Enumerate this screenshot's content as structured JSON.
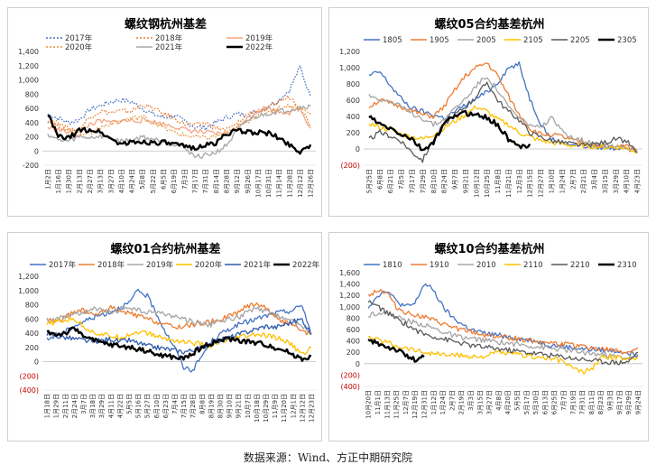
{
  "footer": {
    "source": "数据来源：Wind、方正中期研究院"
  },
  "colors": {
    "blue": "#4472c4",
    "orange": "#ed7d31",
    "gray": "#a5a5a5",
    "gold": "#ffc000",
    "black": "#000000",
    "negative_tick": "#c00000"
  },
  "chart_data": [
    {
      "type": "line",
      "title": "螺纹钢杭州基差",
      "ylim": [
        -200,
        1400
      ],
      "yticks": [
        "1,400",
        "1,200",
        "1,000",
        "800",
        "600",
        "400",
        "200",
        "0",
        "-200"
      ],
      "x_ticks": [
        "1月2日",
        "1月16日",
        "1月30日",
        "2月13日",
        "2月27日",
        "3月13日",
        "3月27日",
        "4月10日",
        "4月24日",
        "5月8日",
        "5月22日",
        "6月5日",
        "6月19日",
        "7月3日",
        "7月17日",
        "7月31日",
        "8月14日",
        "8月28日",
        "9月12日",
        "9月26日",
        "10月17日",
        "10月31日",
        "11月14日",
        "11月28日",
        "12月12日",
        "12月26日"
      ],
      "legend_position": "top",
      "series": [
        {
          "name": "2017年",
          "color": "#4472c4",
          "style": "dotted",
          "width": 1.3,
          "values": [
            520,
            460,
            400,
            440,
            580,
            640,
            690,
            720,
            690,
            600,
            520,
            470,
            500,
            420,
            340,
            330,
            400,
            470,
            520,
            510,
            560,
            630,
            720,
            860,
            1180,
            760
          ]
        },
        {
          "name": "2018年",
          "color": "#ed7d31",
          "style": "dotted",
          "width": 1.3,
          "values": [
            430,
            350,
            320,
            300,
            480,
            560,
            540,
            560,
            560,
            650,
            600,
            520,
            470,
            380,
            360,
            400,
            320,
            300,
            380,
            520,
            580,
            600,
            700,
            760,
            630,
            360
          ]
        },
        {
          "name": "2019年",
          "color": "#f4a582",
          "style": "solid",
          "width": 1.3,
          "values": [
            330,
            300,
            260,
            220,
            380,
            420,
            400,
            420,
            430,
            430,
            410,
            380,
            350,
            300,
            280,
            260,
            240,
            250,
            330,
            460,
            570,
            600,
            560,
            540,
            600,
            320
          ]
        },
        {
          "name": "2020年",
          "color": "#e69138",
          "style": "dotted",
          "width": 1.3,
          "values": [
            450,
            380,
            300,
            260,
            250,
            330,
            390,
            430,
            460,
            480,
            420,
            330,
            260,
            220,
            200,
            180,
            210,
            250,
            320,
            420,
            520,
            560,
            600,
            640,
            600,
            520
          ]
        },
        {
          "name": "2021年",
          "color": "#a5a5a5",
          "style": "solid",
          "width": 1.3,
          "values": [
            240,
            150,
            140,
            200,
            190,
            210,
            180,
            140,
            150,
            200,
            170,
            140,
            90,
            60,
            -80,
            -60,
            -20,
            80,
            280,
            430,
            490,
            530,
            560,
            580,
            620,
            630
          ]
        },
        {
          "name": "2022年",
          "color": "#000000",
          "style": "solid",
          "width": 2.4,
          "values": [
            520,
            200,
            180,
            290,
            300,
            270,
            170,
            100,
            120,
            130,
            120,
            120,
            90,
            60,
            50,
            80,
            110,
            250,
            280,
            270,
            260,
            250,
            180,
            90,
            -10,
            90
          ]
        }
      ]
    },
    {
      "type": "line",
      "title": "螺纹05合约基差杭州",
      "ylim": [
        -200,
        1200
      ],
      "yticks": [
        "1,200",
        "1,000",
        "800",
        "600",
        "400",
        "200",
        "0",
        "(200)"
      ],
      "x_ticks": [
        "5月25日",
        "6月8日",
        "6月21日",
        "7月5日",
        "7月17日",
        "7月29日",
        "8月10日",
        "8月24日",
        "9月7日",
        "9月21日",
        "10月12日",
        "10月25日",
        "11月8日",
        "11月21日",
        "12月3日",
        "12月15日",
        "12月27日",
        "1月10日",
        "1月24日",
        "2月7日",
        "2月21日",
        "3月4日",
        "3月15日",
        "3月29日",
        "4月10日",
        "4月23日"
      ],
      "legend_position": "top",
      "series": [
        {
          "name": "1805",
          "color": "#4472c4",
          "style": "solid",
          "width": 1.3,
          "values": [
            900,
            950,
            780,
            620,
            500,
            460,
            420,
            380,
            460,
            540,
            620,
            700,
            820,
            1000,
            1040,
            620,
            320,
            120,
            80,
            60,
            40,
            20,
            20,
            10,
            20,
            -40
          ]
        },
        {
          "name": "1905",
          "color": "#ed7d31",
          "style": "solid",
          "width": 1.3,
          "values": [
            520,
            600,
            560,
            520,
            470,
            420,
            400,
            520,
            720,
            900,
            1000,
            1060,
            900,
            650,
            420,
            250,
            180,
            180,
            150,
            100,
            80,
            60,
            40,
            20,
            40,
            -30
          ]
        },
        {
          "name": "2005",
          "color": "#a5a5a5",
          "style": "solid",
          "width": 1.3,
          "values": [
            660,
            620,
            580,
            520,
            440,
            380,
            300,
            360,
            500,
            620,
            780,
            900,
            720,
            520,
            380,
            300,
            250,
            380,
            220,
            150,
            100,
            80,
            60,
            40,
            20,
            -20
          ]
        },
        {
          "name": "2105",
          "color": "#ffc000",
          "style": "solid",
          "width": 1.3,
          "values": [
            320,
            260,
            240,
            180,
            150,
            120,
            180,
            260,
            340,
            420,
            520,
            460,
            360,
            300,
            200,
            150,
            100,
            80,
            60,
            40,
            40,
            30,
            20,
            20,
            10,
            -40
          ]
        },
        {
          "name": "2205",
          "color": "#595959",
          "style": "solid",
          "width": 1.3,
          "values": [
            120,
            200,
            160,
            100,
            -40,
            -140,
            120,
            300,
            420,
            520,
            640,
            820,
            600,
            460,
            360,
            200,
            150,
            100,
            80,
            60,
            40,
            60,
            80,
            120,
            100,
            -50
          ]
        },
        {
          "name": "2305",
          "color": "#000000",
          "style": "solid",
          "width": 2.4,
          "values": [
            400,
            300,
            250,
            180,
            120,
            -20,
            80,
            300,
            420,
            440,
            430,
            380,
            300,
            120,
            20,
            60
          ]
        }
      ]
    },
    {
      "type": "line",
      "title": "螺纹01合约杭州基差",
      "ylim": [
        -400,
        1200
      ],
      "yticks": [
        "1,200",
        "1,000",
        "800",
        "600",
        "400",
        "200",
        "0",
        "(200)",
        "(400)"
      ],
      "x_ticks": [
        "1月18日",
        "1月29日",
        "2月11日",
        "2月24日",
        "3月7日",
        "3月18日",
        "3月29日",
        "4月11日",
        "4月22日",
        "5月5日",
        "5月16日",
        "5月27日",
        "6月10日",
        "6月23日",
        "7月4日",
        "7月15日",
        "7月28日",
        "8月8日",
        "8月19日",
        "8月30日",
        "9月10日",
        "9月21日",
        "10月7日",
        "10月18日",
        "10月29日",
        "11月9日",
        "11月20日",
        "12月1日",
        "12月12日",
        "12月23日"
      ],
      "legend_position": "top",
      "series": [
        {
          "name": "2017年",
          "color": "#4472c4",
          "style": "solid",
          "width": 1.3,
          "values": [
            300,
            380,
            420,
            500,
            560,
            620,
            660,
            700,
            760,
            820,
            1000,
            920,
            680,
            420,
            200,
            -80,
            -120,
            80,
            280,
            380,
            460,
            520,
            560,
            600,
            640,
            680,
            700,
            720,
            800,
            380
          ]
        },
        {
          "name": "2018年",
          "color": "#ed7d31",
          "style": "solid",
          "width": 1.3,
          "values": [
            600,
            560,
            620,
            700,
            720,
            650,
            700,
            760,
            700,
            680,
            640,
            600,
            560,
            520,
            480,
            500,
            520,
            540,
            560,
            600,
            640,
            700,
            780,
            820,
            760,
            640,
            560,
            500,
            420,
            380
          ]
        },
        {
          "name": "2019年",
          "color": "#a5a5a5",
          "style": "solid",
          "width": 1.3,
          "values": [
            580,
            600,
            640,
            660,
            700,
            740,
            720,
            680,
            740,
            760,
            720,
            680,
            700,
            660,
            640,
            600,
            560,
            540,
            520,
            560,
            600,
            620,
            700,
            740,
            700,
            660,
            620,
            560,
            500,
            420
          ]
        },
        {
          "name": "2020年",
          "color": "#ffc000",
          "style": "solid",
          "width": 1.3,
          "values": [
            520,
            560,
            580,
            600,
            500,
            420,
            380,
            360,
            340,
            380,
            420,
            400,
            360,
            320,
            300,
            280,
            260,
            240,
            220,
            260,
            300,
            340,
            360,
            380,
            360,
            340,
            300,
            220,
            100,
            200
          ]
        },
        {
          "name": "2021年",
          "color": "#2e5aac",
          "style": "solid",
          "width": 1.3,
          "values": [
            400,
            360,
            340,
            320,
            300,
            280,
            300,
            320,
            280,
            300,
            260,
            220,
            200,
            180,
            160,
            140,
            160,
            200,
            260,
            300,
            340,
            380,
            420,
            460,
            500,
            480,
            520,
            560,
            600,
            380
          ]
        },
        {
          "name": "2022年",
          "color": "#000000",
          "style": "solid",
          "width": 2.4,
          "values": [
            420,
            380,
            400,
            460,
            380,
            300,
            260,
            240,
            220,
            200,
            180,
            150,
            100,
            80,
            60,
            40,
            120,
            200,
            260,
            300,
            320,
            300,
            280,
            260,
            240,
            200,
            160,
            100,
            40,
            80
          ]
        }
      ]
    },
    {
      "type": "line",
      "title": "螺纹10合约基差杭州",
      "ylim": [
        -400,
        1600
      ],
      "yticks": [
        "1,600",
        "1,400",
        "1,200",
        "1,000",
        "800",
        "600",
        "400",
        "200",
        "0",
        "(200)",
        "(400)"
      ],
      "x_ticks": [
        "10月20日",
        "11月1日",
        "11月13日",
        "11月25日",
        "12月7日",
        "12月19日",
        "12月31日",
        "1月12日",
        "1月24日",
        "2月7日",
        "2月19日",
        "3月3日",
        "3月15日",
        "3月27日",
        "4月8日",
        "4月20日",
        "5月5日",
        "5月17日",
        "5月30日",
        "6月13日",
        "6月25日",
        "7月7日",
        "7月19日",
        "7月31日",
        "8月11日",
        "8月23日",
        "9月3日",
        "9月17日",
        "9月29日",
        "9月24日"
      ],
      "legend_position": "top",
      "series": [
        {
          "name": "1810",
          "color": "#4472c4",
          "style": "solid",
          "width": 1.3,
          "values": [
            1000,
            1200,
            1300,
            1100,
            1000,
            1050,
            1400,
            1300,
            1000,
            820,
            700,
            600,
            550,
            520,
            500,
            480,
            450,
            420,
            400,
            350,
            320,
            300,
            280,
            260,
            250,
            240,
            230,
            220,
            200,
            150
          ]
        },
        {
          "name": "1910",
          "color": "#ed7d31",
          "style": "solid",
          "width": 1.3,
          "values": [
            1200,
            1300,
            1250,
            1000,
            900,
            860,
            820,
            760,
            700,
            640,
            600,
            560,
            520,
            500,
            480,
            460,
            440,
            420,
            400,
            380,
            360,
            340,
            320,
            300,
            280,
            260,
            240,
            220,
            200,
            280
          ]
        },
        {
          "name": "2010",
          "color": "#a5a5a5",
          "style": "solid",
          "width": 1.3,
          "values": [
            850,
            900,
            880,
            820,
            760,
            720,
            680,
            620,
            560,
            500,
            460,
            440,
            420,
            400,
            380,
            360,
            340,
            320,
            300,
            280,
            260,
            240,
            220,
            200,
            180,
            160,
            140,
            120,
            100,
            150
          ]
        },
        {
          "name": "2110",
          "color": "#ffc000",
          "style": "solid",
          "width": 1.3,
          "values": [
            450,
            420,
            380,
            320,
            280,
            240,
            200,
            180,
            160,
            150,
            140,
            130,
            120,
            150,
            200,
            180,
            160,
            140,
            120,
            100,
            80,
            40,
            -80,
            -150,
            -100,
            100,
            120,
            100,
            80,
            120
          ]
        },
        {
          "name": "2210",
          "color": "#595959",
          "style": "solid",
          "width": 1.3,
          "values": [
            1100,
            1000,
            900,
            800,
            700,
            600,
            520,
            480,
            440,
            400,
            360,
            320,
            300,
            280,
            260,
            240,
            220,
            200,
            180,
            160,
            140,
            120,
            100,
            80,
            60,
            40,
            30,
            20,
            40,
            200
          ]
        },
        {
          "name": "2310",
          "color": "#000000",
          "style": "solid",
          "width": 2.4,
          "values": [
            400,
            360,
            300,
            250,
            150,
            60,
            120
          ]
        }
      ]
    }
  ]
}
